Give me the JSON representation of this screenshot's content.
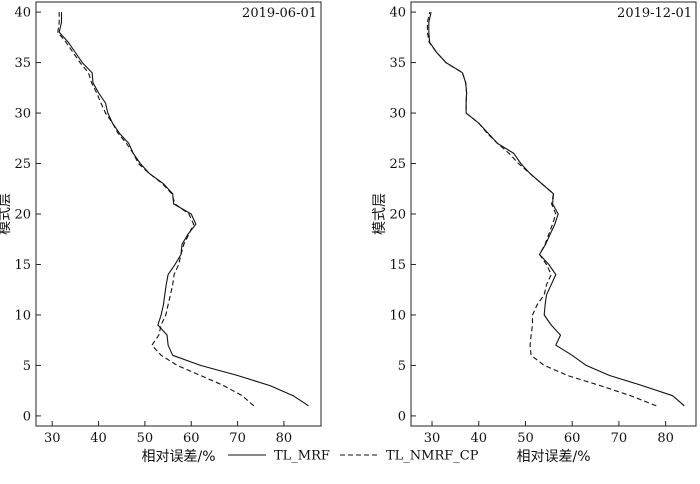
{
  "chart_data": [
    {
      "type": "line",
      "title": "2019-06-01",
      "xlabel": "相对误差/%",
      "ylabel": "模式层",
      "xlim": [
        26.5,
        88
      ],
      "ylim": [
        -1,
        41
      ],
      "x_ticks": [
        30,
        40,
        50,
        60,
        70,
        80
      ],
      "y_ticks": [
        0,
        5,
        10,
        15,
        20,
        25,
        30,
        35,
        40
      ],
      "series": [
        {
          "name": "TL_MRF",
          "style": "solid",
          "points": [
            [
              85.3,
              1
            ],
            [
              82,
              2
            ],
            [
              77,
              3
            ],
            [
              70,
              4
            ],
            [
              62,
              5
            ],
            [
              56,
              6
            ],
            [
              55,
              7
            ],
            [
              54.8,
              8
            ],
            [
              52.8,
              9
            ],
            [
              53.5,
              10
            ],
            [
              54,
              11
            ],
            [
              54.3,
              12
            ],
            [
              54.6,
              13
            ],
            [
              55,
              14
            ],
            [
              56.5,
              15
            ],
            [
              57.8,
              16
            ],
            [
              58,
              17
            ],
            [
              59.3,
              18
            ],
            [
              61,
              19
            ],
            [
              60,
              20
            ],
            [
              56.2,
              21
            ],
            [
              56,
              22
            ],
            [
              54,
              23
            ],
            [
              51,
              24
            ],
            [
              49,
              25
            ],
            [
              47.5,
              26
            ],
            [
              46.5,
              27
            ],
            [
              44.5,
              28
            ],
            [
              43,
              29
            ],
            [
              42,
              30
            ],
            [
              41.5,
              31
            ],
            [
              40,
              32
            ],
            [
              38.8,
              33
            ],
            [
              38.6,
              34
            ],
            [
              36.5,
              35
            ],
            [
              35,
              36
            ],
            [
              33.5,
              37
            ],
            [
              31.5,
              38
            ],
            [
              32,
              39
            ],
            [
              32,
              40
            ]
          ]
        },
        {
          "name": "TL_NMRF_CP",
          "style": "dashed",
          "points": [
            [
              73.5,
              1
            ],
            [
              71,
              2
            ],
            [
              67,
              3
            ],
            [
              62,
              4
            ],
            [
              57,
              5
            ],
            [
              53.5,
              6
            ],
            [
              51.5,
              7
            ],
            [
              53,
              8
            ],
            [
              53.5,
              9
            ],
            [
              54.5,
              10
            ],
            [
              55,
              11
            ],
            [
              55.5,
              12
            ],
            [
              56,
              13
            ],
            [
              56.3,
              14
            ],
            [
              57.3,
              15
            ],
            [
              57.8,
              16
            ],
            [
              58.4,
              17
            ],
            [
              59.5,
              18
            ],
            [
              60.5,
              19
            ],
            [
              59.5,
              20
            ],
            [
              56.5,
              21
            ],
            [
              55.8,
              22
            ],
            [
              53.8,
              23
            ],
            [
              51,
              24
            ],
            [
              48.6,
              25
            ],
            [
              47.5,
              26
            ],
            [
              46,
              27
            ],
            [
              44.2,
              28
            ],
            [
              43,
              29
            ],
            [
              41.5,
              30
            ],
            [
              40.5,
              31
            ],
            [
              39.6,
              32
            ],
            [
              38.5,
              33
            ],
            [
              37.8,
              34
            ],
            [
              36,
              35
            ],
            [
              34.5,
              36
            ],
            [
              33,
              37
            ],
            [
              31.2,
              38
            ],
            [
              31.5,
              39
            ],
            [
              31.5,
              40
            ]
          ]
        }
      ]
    },
    {
      "type": "line",
      "title": "2019-12-01",
      "xlabel": "相对误差/%",
      "ylabel": "模式层",
      "xlim": [
        25.5,
        86.5
      ],
      "ylim": [
        -1,
        41
      ],
      "x_ticks": [
        30,
        40,
        50,
        60,
        70,
        80
      ],
      "y_ticks": [
        0,
        5,
        10,
        15,
        20,
        25,
        30,
        35,
        40
      ],
      "series": [
        {
          "name": "TL_MRF",
          "style": "solid",
          "points": [
            [
              84,
              1
            ],
            [
              81.5,
              2
            ],
            [
              75,
              3
            ],
            [
              68,
              4
            ],
            [
              63,
              5
            ],
            [
              60,
              6
            ],
            [
              56.5,
              7
            ],
            [
              57.5,
              8
            ],
            [
              55.5,
              9
            ],
            [
              54,
              10
            ],
            [
              54.2,
              11
            ],
            [
              54.5,
              12
            ],
            [
              55.5,
              13
            ],
            [
              56.5,
              14
            ],
            [
              55,
              15
            ],
            [
              53,
              16
            ],
            [
              54.3,
              17
            ],
            [
              55.3,
              18
            ],
            [
              56.3,
              19
            ],
            [
              57,
              20
            ],
            [
              55.8,
              21
            ],
            [
              56,
              22
            ],
            [
              53.5,
              23
            ],
            [
              51,
              24
            ],
            [
              49,
              25
            ],
            [
              47.5,
              26
            ],
            [
              44,
              27
            ],
            [
              42,
              28
            ],
            [
              40,
              29
            ],
            [
              37.3,
              30
            ],
            [
              37.3,
              31
            ],
            [
              37.4,
              32
            ],
            [
              37.2,
              33
            ],
            [
              36.5,
              34
            ],
            [
              33,
              35
            ],
            [
              31,
              36
            ],
            [
              29.5,
              37
            ],
            [
              29.3,
              38
            ],
            [
              29.3,
              39
            ],
            [
              29.8,
              40
            ]
          ]
        },
        {
          "name": "TL_NMRF_CP",
          "style": "dashed",
          "points": [
            [
              78,
              1
            ],
            [
              72.5,
              2
            ],
            [
              66,
              3
            ],
            [
              59,
              4
            ],
            [
              54,
              5
            ],
            [
              51.2,
              6
            ],
            [
              51,
              7
            ],
            [
              51.2,
              8
            ],
            [
              51.5,
              9
            ],
            [
              51.5,
              10
            ],
            [
              52.5,
              11
            ],
            [
              54,
              12
            ],
            [
              54.5,
              13
            ],
            [
              55.5,
              14
            ],
            [
              54.5,
              15
            ],
            [
              53,
              16
            ],
            [
              54.2,
              17
            ],
            [
              55,
              18
            ],
            [
              55.8,
              19
            ],
            [
              56.5,
              20
            ],
            [
              55.6,
              21
            ],
            [
              56,
              22
            ],
            [
              53.5,
              23
            ],
            [
              51,
              24
            ],
            [
              48.5,
              25
            ],
            [
              46.5,
              26
            ],
            [
              44,
              27
            ],
            [
              41.8,
              28
            ],
            [
              40,
              29
            ],
            [
              37.3,
              30
            ],
            [
              37.3,
              31
            ],
            [
              37.4,
              32
            ],
            [
              37.2,
              33
            ],
            [
              36.5,
              34
            ],
            [
              33,
              35
            ],
            [
              31,
              36
            ],
            [
              29.4,
              37
            ],
            [
              29,
              38
            ],
            [
              29,
              39
            ],
            [
              29.5,
              40
            ]
          ]
        }
      ]
    }
  ],
  "legend": {
    "position": "bottom-center",
    "items": [
      {
        "label": "TL_MRF",
        "style": "solid"
      },
      {
        "label": "TL_NMRF_CP",
        "style": "dashed"
      }
    ]
  }
}
